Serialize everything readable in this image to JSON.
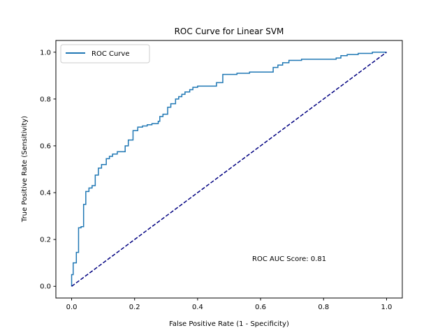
{
  "chart_data": {
    "type": "line",
    "title": "ROC Curve for Linear SVM",
    "xlabel": "False Positive Rate (1 - Specificity)",
    "ylabel": "True Positive Rate (Sensitivity)",
    "xlim": [
      -0.05,
      1.05
    ],
    "ylim": [
      -0.05,
      1.05
    ],
    "xticks": [
      0.0,
      0.2,
      0.4,
      0.6,
      0.8,
      1.0
    ],
    "yticks": [
      0.0,
      0.2,
      0.4,
      0.6,
      0.8,
      1.0
    ],
    "xtick_labels": [
      "0.0",
      "0.2",
      "0.4",
      "0.6",
      "0.8",
      "1.0"
    ],
    "ytick_labels": [
      "0.0",
      "0.2",
      "0.4",
      "0.6",
      "0.8",
      "1.0"
    ],
    "grid": false,
    "legend": {
      "position": "top-left",
      "entries": [
        "ROC Curve"
      ]
    },
    "annotation": "ROC AUC Score: 0.81",
    "series": [
      {
        "name": "ROC Curve",
        "color": "#1f77b4",
        "style": "solid",
        "points": [
          [
            0.0,
            0.0
          ],
          [
            0.0,
            0.05
          ],
          [
            0.005,
            0.05
          ],
          [
            0.005,
            0.1
          ],
          [
            0.015,
            0.1
          ],
          [
            0.015,
            0.145
          ],
          [
            0.022,
            0.145
          ],
          [
            0.022,
            0.25
          ],
          [
            0.03,
            0.25
          ],
          [
            0.03,
            0.255
          ],
          [
            0.038,
            0.255
          ],
          [
            0.038,
            0.35
          ],
          [
            0.045,
            0.35
          ],
          [
            0.045,
            0.405
          ],
          [
            0.055,
            0.405
          ],
          [
            0.055,
            0.42
          ],
          [
            0.065,
            0.42
          ],
          [
            0.065,
            0.43
          ],
          [
            0.075,
            0.43
          ],
          [
            0.075,
            0.475
          ],
          [
            0.085,
            0.475
          ],
          [
            0.085,
            0.505
          ],
          [
            0.095,
            0.505
          ],
          [
            0.095,
            0.52
          ],
          [
            0.11,
            0.52
          ],
          [
            0.11,
            0.545
          ],
          [
            0.12,
            0.545
          ],
          [
            0.12,
            0.555
          ],
          [
            0.13,
            0.555
          ],
          [
            0.13,
            0.565
          ],
          [
            0.145,
            0.565
          ],
          [
            0.145,
            0.575
          ],
          [
            0.17,
            0.575
          ],
          [
            0.17,
            0.6
          ],
          [
            0.18,
            0.6
          ],
          [
            0.18,
            0.625
          ],
          [
            0.195,
            0.625
          ],
          [
            0.195,
            0.665
          ],
          [
            0.21,
            0.665
          ],
          [
            0.21,
            0.68
          ],
          [
            0.225,
            0.68
          ],
          [
            0.225,
            0.685
          ],
          [
            0.24,
            0.685
          ],
          [
            0.24,
            0.69
          ],
          [
            0.255,
            0.69
          ],
          [
            0.255,
            0.695
          ],
          [
            0.275,
            0.695
          ],
          [
            0.275,
            0.705
          ],
          [
            0.28,
            0.705
          ],
          [
            0.28,
            0.725
          ],
          [
            0.29,
            0.725
          ],
          [
            0.29,
            0.735
          ],
          [
            0.305,
            0.735
          ],
          [
            0.305,
            0.765
          ],
          [
            0.315,
            0.765
          ],
          [
            0.315,
            0.78
          ],
          [
            0.33,
            0.78
          ],
          [
            0.33,
            0.8
          ],
          [
            0.34,
            0.8
          ],
          [
            0.34,
            0.81
          ],
          [
            0.35,
            0.81
          ],
          [
            0.35,
            0.82
          ],
          [
            0.36,
            0.82
          ],
          [
            0.36,
            0.83
          ],
          [
            0.375,
            0.83
          ],
          [
            0.375,
            0.84
          ],
          [
            0.385,
            0.84
          ],
          [
            0.385,
            0.85
          ],
          [
            0.4,
            0.85
          ],
          [
            0.4,
            0.855
          ],
          [
            0.46,
            0.855
          ],
          [
            0.46,
            0.87
          ],
          [
            0.48,
            0.87
          ],
          [
            0.48,
            0.905
          ],
          [
            0.525,
            0.905
          ],
          [
            0.525,
            0.91
          ],
          [
            0.565,
            0.91
          ],
          [
            0.565,
            0.915
          ],
          [
            0.64,
            0.915
          ],
          [
            0.64,
            0.935
          ],
          [
            0.655,
            0.935
          ],
          [
            0.655,
            0.945
          ],
          [
            0.67,
            0.945
          ],
          [
            0.67,
            0.955
          ],
          [
            0.69,
            0.955
          ],
          [
            0.69,
            0.965
          ],
          [
            0.73,
            0.965
          ],
          [
            0.73,
            0.97
          ],
          [
            0.84,
            0.97
          ],
          [
            0.84,
            0.975
          ],
          [
            0.855,
            0.975
          ],
          [
            0.855,
            0.985
          ],
          [
            0.875,
            0.985
          ],
          [
            0.875,
            0.99
          ],
          [
            0.91,
            0.99
          ],
          [
            0.91,
            0.995
          ],
          [
            0.955,
            0.995
          ],
          [
            0.955,
            1.0
          ],
          [
            1.0,
            1.0
          ]
        ]
      },
      {
        "name": "",
        "color": "#000080",
        "style": "dashed",
        "points": [
          [
            0.0,
            0.0
          ],
          [
            1.0,
            1.0
          ]
        ]
      }
    ]
  }
}
